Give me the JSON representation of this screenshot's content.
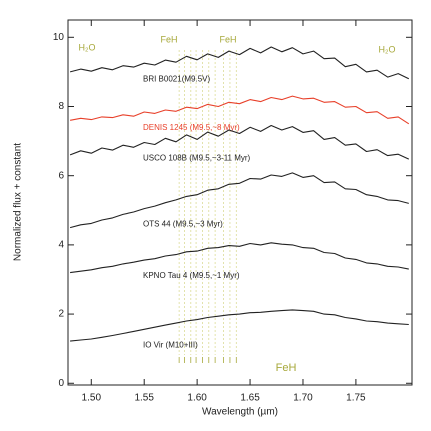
{
  "chart_data": {
    "type": "line",
    "x_label": "Wavelength (µm)",
    "y_label": "Normalized flux + constant",
    "annotations": [
      "H₂O",
      "FeH",
      "FeH",
      "H₂O",
      "FeH"
    ],
    "annotation_color": "#a7a83a",
    "feh_lines": [
      1.583,
      1.588,
      1.594,
      1.599,
      1.605,
      1.611,
      1.617,
      1.625,
      1.631,
      1.637
    ],
    "feh_line_color": "#dcdc98",
    "xlim": [
      1.478,
      1.803
    ],
    "ylim": [
      -0.05,
      10.5
    ],
    "xticks": [
      {
        "value": 1.5,
        "label": "1.50"
      },
      {
        "value": 1.55,
        "label": "1.55"
      },
      {
        "value": 1.6,
        "label": "1.60"
      },
      {
        "value": 1.65,
        "label": "1.65"
      },
      {
        "value": 1.7,
        "label": "1.70"
      },
      {
        "value": 1.75,
        "label": "1.75"
      }
    ],
    "yticks": [
      0,
      2,
      4,
      6,
      8,
      10
    ],
    "x": [
      1.48,
      1.49,
      1.5,
      1.51,
      1.52,
      1.53,
      1.54,
      1.55,
      1.56,
      1.57,
      1.58,
      1.59,
      1.6,
      1.61,
      1.62,
      1.63,
      1.64,
      1.65,
      1.66,
      1.67,
      1.68,
      1.69,
      1.7,
      1.71,
      1.72,
      1.73,
      1.74,
      1.75,
      1.76,
      1.77,
      1.78,
      1.79,
      1.8
    ],
    "series": [
      {
        "name": "BRI B0021(M9.5V)",
        "color": "#222222",
        "values": [
          9.0,
          9.08,
          9.02,
          9.12,
          9.06,
          9.18,
          9.14,
          9.25,
          9.2,
          9.34,
          9.28,
          9.45,
          9.35,
          9.52,
          9.42,
          9.6,
          9.5,
          9.68,
          9.55,
          9.72,
          9.58,
          9.7,
          9.52,
          9.6,
          9.38,
          9.4,
          9.15,
          9.22,
          9.0,
          9.05,
          8.85,
          8.95,
          8.8
        ]
      },
      {
        "name": "DENIS 1245 (M9.5,~8 Myr)",
        "color": "#e8402a",
        "values": [
          7.6,
          7.66,
          7.62,
          7.7,
          7.68,
          7.76,
          7.72,
          7.84,
          7.8,
          7.9,
          7.86,
          7.98,
          7.94,
          8.06,
          8.0,
          8.12,
          8.08,
          8.2,
          8.14,
          8.26,
          8.2,
          8.3,
          8.22,
          8.24,
          8.12,
          8.14,
          7.98,
          8.0,
          7.82,
          7.85,
          7.66,
          7.7,
          7.5
        ]
      },
      {
        "name": "USCO 108B (M9.5,~3-11 Myr)",
        "color": "#222222",
        "values": [
          6.6,
          6.72,
          6.65,
          6.8,
          6.74,
          6.88,
          6.82,
          6.96,
          6.9,
          7.08,
          6.98,
          7.18,
          7.05,
          7.26,
          7.14,
          7.32,
          7.22,
          7.4,
          7.28,
          7.45,
          7.32,
          7.42,
          7.25,
          7.3,
          7.05,
          7.1,
          6.88,
          6.92,
          6.7,
          6.75,
          6.58,
          6.62,
          6.48
        ]
      },
      {
        "name": "OTS 44 (M9.5,~3 Myr)",
        "color": "#222222",
        "values": [
          4.5,
          4.58,
          4.62,
          4.72,
          4.78,
          4.88,
          4.95,
          5.05,
          5.12,
          5.22,
          5.3,
          5.4,
          5.45,
          5.58,
          5.62,
          5.75,
          5.78,
          5.92,
          5.9,
          6.02,
          5.98,
          6.08,
          5.95,
          6.0,
          5.8,
          5.82,
          5.62,
          5.6,
          5.45,
          5.4,
          5.3,
          5.28,
          5.2
        ]
      },
      {
        "name": "KPNO Tau 4 (M9.5,~1 Myr)",
        "color": "#222222",
        "values": [
          3.2,
          3.24,
          3.28,
          3.34,
          3.38,
          3.45,
          3.5,
          3.56,
          3.6,
          3.68,
          3.72,
          3.8,
          3.82,
          3.9,
          3.92,
          3.98,
          3.96,
          4.04,
          4.0,
          4.06,
          4.02,
          4.0,
          3.92,
          3.9,
          3.78,
          3.75,
          3.62,
          3.58,
          3.48,
          3.45,
          3.38,
          3.36,
          3.3
        ]
      },
      {
        "name": "IO Vir (M10+III)",
        "color": "#222222",
        "values": [
          1.22,
          1.25,
          1.28,
          1.33,
          1.38,
          1.44,
          1.5,
          1.56,
          1.62,
          1.68,
          1.74,
          1.8,
          1.84,
          1.9,
          1.94,
          1.98,
          2.0,
          2.04,
          2.05,
          2.08,
          2.1,
          2.12,
          2.1,
          2.08,
          2.0,
          1.98,
          1.9,
          1.86,
          1.8,
          1.78,
          1.74,
          1.72,
          1.7
        ]
      }
    ]
  }
}
